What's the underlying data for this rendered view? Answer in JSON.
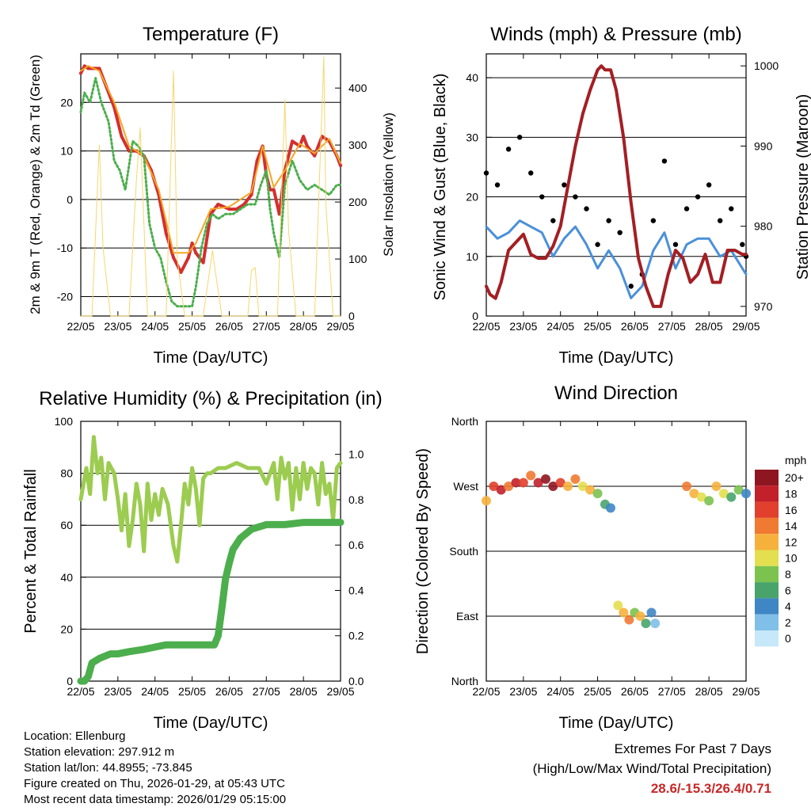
{
  "chart_data": [
    {
      "type": "line",
      "title": "Temperature (F)",
      "xlabel": "Time (Day/UTC)",
      "ylabel": "2m & 9m T (Red, Orange) & 2m Td (Green)",
      "y2label": "Solar Insolation (Yellow)",
      "xticks": [
        "22/05",
        "23/05",
        "24/05",
        "25/05",
        "26/05",
        "27/05",
        "28/05",
        "29/05"
      ],
      "yticks": [
        "-20",
        "-10",
        "0",
        "10",
        "20"
      ],
      "y2ticks": [
        "0",
        "100",
        "200",
        "300",
        "400"
      ],
      "ylim": [
        -24,
        30
      ],
      "y2lim": [
        0,
        460
      ],
      "xlim": [
        0,
        7
      ],
      "grid": "horizontal",
      "colors": {
        "t2m": "#d32f2f",
        "t9m": "#f5a623",
        "td": "#4cae4c",
        "sol": "#f5d76e"
      },
      "series": [
        {
          "name": "2m T",
          "x": [
            0,
            0.1,
            0.2,
            0.35,
            0.5,
            0.7,
            0.9,
            1.1,
            1.3,
            1.5,
            1.7,
            1.9,
            2.1,
            2.3,
            2.5,
            2.7,
            2.9,
            3.0,
            3.1,
            3.3,
            3.5,
            3.7,
            4.0,
            4.2,
            4.4,
            4.6,
            4.75,
            4.9,
            5.0,
            5.1,
            5.2,
            5.35,
            5.5,
            5.7,
            5.9,
            6.0,
            6.1,
            6.3,
            6.5,
            6.7,
            6.9,
            7.0
          ],
          "values": [
            26,
            27.5,
            27,
            27,
            27,
            23,
            19,
            13,
            10,
            10,
            9,
            6,
            1,
            -7,
            -12,
            -15,
            -12,
            -9,
            -11,
            -13,
            -3,
            -1,
            -2,
            -2,
            -1,
            1,
            8,
            11,
            5,
            2,
            2,
            -3,
            6,
            12,
            11,
            13,
            11,
            9,
            13,
            12,
            9,
            7
          ]
        },
        {
          "name": "9m T",
          "x": [
            0,
            0.2,
            0.5,
            0.9,
            1.3,
            1.7,
            2.1,
            2.5,
            2.9,
            3.1,
            3.5,
            4.0,
            4.6,
            4.9,
            5.2,
            5.5,
            5.9,
            6.3,
            6.7,
            7.0
          ],
          "values": [
            26.5,
            27.5,
            26.5,
            20,
            11,
            9,
            2,
            -11,
            -11,
            -9,
            -2,
            -1.5,
            1.5,
            11,
            2.5,
            6,
            11.5,
            9.5,
            12.5,
            7.5
          ]
        },
        {
          "name": "2m Td",
          "x": [
            0,
            0.1,
            0.25,
            0.4,
            0.55,
            0.75,
            0.9,
            1.05,
            1.2,
            1.4,
            1.55,
            1.7,
            1.85,
            2.0,
            2.15,
            2.3,
            2.45,
            2.6,
            2.8,
            3.0,
            3.1,
            3.25,
            3.4,
            3.55,
            3.7,
            3.9,
            4.1,
            4.3,
            4.5,
            4.7,
            4.85,
            5.0,
            5.1,
            5.2,
            5.35,
            5.5,
            5.7,
            5.9,
            6.1,
            6.3,
            6.5,
            6.7,
            6.9,
            7.0
          ],
          "values": [
            18,
            22,
            20,
            25,
            20,
            16,
            8,
            6,
            2,
            12,
            11,
            9,
            -5,
            -10,
            -12,
            -17,
            -21,
            -22,
            -22,
            -22,
            -18,
            -10,
            -5,
            -3,
            -4,
            -3,
            -3,
            -2,
            -1,
            -1,
            3,
            6,
            -2,
            -7,
            -12,
            3,
            8,
            4,
            2,
            3,
            2,
            1,
            3,
            3
          ]
        },
        {
          "name": "Solar Insolation",
          "axis": "y2",
          "x": [
            0,
            0.3,
            0.5,
            0.6,
            0.8,
            1.3,
            1.5,
            1.6,
            1.8,
            2.3,
            2.5,
            2.6,
            2.8,
            3.3,
            3.55,
            3.6,
            3.8,
            4.5,
            4.6,
            4.7,
            4.8,
            5.3,
            5.5,
            5.6,
            5.8,
            6.3,
            6.55,
            6.6,
            6.8,
            7.0
          ],
          "values": [
            0,
            0,
            300,
            120,
            0,
            0,
            240,
            330,
            0,
            0,
            430,
            100,
            0,
            0,
            115,
            90,
            0,
            0,
            80,
            85,
            0,
            0,
            380,
            150,
            0,
            0,
            455,
            200,
            0,
            0
          ]
        }
      ]
    },
    {
      "type": "scatter",
      "title": "Winds (mph) & Pressure (mb)",
      "xlabel": "Time (Day/UTC)",
      "ylabel": "Sonic Wind & Gust (Blue, Black)",
      "y2label": "Station Pressure (Maroon)",
      "xticks": [
        "22/05",
        "23/05",
        "24/05",
        "25/05",
        "26/05",
        "27/05",
        "28/05",
        "29/05"
      ],
      "yticks": [
        "0",
        "10",
        "20",
        "30",
        "40"
      ],
      "y2ticks": [
        "970",
        "980",
        "990",
        "1000"
      ],
      "ylim": [
        0,
        44
      ],
      "y2lim": [
        968.8,
        1001.5
      ],
      "xlim": [
        0,
        7
      ],
      "grid": "horizontal",
      "colors": {
        "wind": "#4a90d9",
        "gust": "#000000",
        "pressure": "#a31f24"
      },
      "series": [
        {
          "name": "Sonic Wind",
          "x": [
            0,
            0.3,
            0.6,
            0.9,
            1.2,
            1.5,
            1.8,
            2.1,
            2.4,
            2.7,
            3.0,
            3.3,
            3.6,
            3.9,
            4.2,
            4.5,
            4.8,
            5.1,
            5.4,
            5.7,
            6.0,
            6.3,
            6.6,
            6.9,
            7.0
          ],
          "values": [
            15,
            13,
            14,
            16,
            15,
            14,
            10,
            13,
            15,
            12,
            8,
            11,
            8,
            3,
            5,
            11,
            14,
            8,
            12,
            13,
            13,
            10,
            11,
            8,
            7
          ]
        },
        {
          "name": "Gust",
          "x": [
            0,
            0.3,
            0.6,
            0.9,
            1.2,
            1.5,
            1.8,
            2.1,
            2.4,
            2.7,
            3.0,
            3.3,
            3.6,
            3.9,
            4.2,
            4.5,
            4.8,
            5.1,
            5.4,
            5.7,
            6.0,
            6.3,
            6.6,
            6.9,
            7.0
          ],
          "values": [
            24,
            22,
            28,
            30,
            24,
            20,
            16,
            22,
            20,
            18,
            12,
            16,
            14,
            5,
            7,
            16,
            26,
            12,
            18,
            20,
            22,
            16,
            18,
            12,
            10
          ]
        },
        {
          "name": "Station Pressure",
          "axis": "y2",
          "x": [
            0,
            0.1,
            0.25,
            0.4,
            0.6,
            0.8,
            1.0,
            1.2,
            1.4,
            1.6,
            1.8,
            2.0,
            2.2,
            2.4,
            2.6,
            2.8,
            3.0,
            3.1,
            3.2,
            3.35,
            3.5,
            3.7,
            3.9,
            4.1,
            4.3,
            4.5,
            4.7,
            4.9,
            5.1,
            5.3,
            5.5,
            5.7,
            5.9,
            6.1,
            6.3,
            6.5,
            6.7,
            6.9,
            7.0
          ],
          "values": [
            972.5,
            971.5,
            971,
            973,
            977,
            978,
            979,
            976.5,
            976,
            976,
            977.5,
            980,
            985,
            990,
            994,
            997,
            999.5,
            1000,
            999.5,
            999.5,
            997,
            991,
            983,
            976,
            972.5,
            970,
            970,
            974,
            977,
            976,
            973,
            974,
            976.5,
            973,
            973,
            977,
            977,
            976.5,
            976.5
          ]
        }
      ]
    },
    {
      "type": "line",
      "title": "Relative Humidity (%) & Precipitation (in)",
      "xlabel": "Time (Day/UTC)",
      "ylabel": "Percent & Total Rainfall",
      "xticks": [
        "22/05",
        "23/05",
        "24/05",
        "25/05",
        "26/05",
        "27/05",
        "28/05",
        "29/05"
      ],
      "yticks": [
        "0",
        "20",
        "40",
        "60",
        "80",
        "100"
      ],
      "y2ticks": [
        "0.0",
        "0.2",
        "0.4",
        "0.6",
        "0.8",
        "1.0"
      ],
      "ylim": [
        0,
        100
      ],
      "y2lim": [
        0,
        1.1455
      ],
      "xlim": [
        0,
        7
      ],
      "grid": "horizontal",
      "colors": {
        "rh": "#9ccc50",
        "precip": "#4cae4c"
      },
      "series": [
        {
          "name": "Relative Humidity",
          "x": [
            0,
            0.15,
            0.25,
            0.35,
            0.45,
            0.55,
            0.65,
            0.75,
            0.9,
            1.0,
            1.1,
            1.2,
            1.3,
            1.4,
            1.5,
            1.6,
            1.7,
            1.8,
            1.9,
            2.0,
            2.1,
            2.2,
            2.35,
            2.5,
            2.6,
            2.7,
            2.8,
            2.9,
            3.0,
            3.1,
            3.2,
            3.3,
            3.4,
            3.5,
            3.7,
            3.9,
            4.2,
            4.5,
            4.8,
            5.0,
            5.1,
            5.2,
            5.3,
            5.4,
            5.5,
            5.6,
            5.7,
            5.8,
            5.9,
            6.0,
            6.1,
            6.2,
            6.3,
            6.4,
            6.5,
            6.6,
            6.7,
            6.8,
            6.9,
            7.0
          ],
          "values": [
            70,
            82,
            72,
            94,
            80,
            86,
            70,
            84,
            80,
            70,
            58,
            72,
            52,
            62,
            76,
            68,
            50,
            76,
            62,
            72,
            64,
            74,
            68,
            52,
            46,
            60,
            76,
            68,
            82,
            74,
            60,
            78,
            80,
            80,
            82,
            82,
            84,
            82,
            82,
            76,
            80,
            84,
            70,
            86,
            78,
            84,
            66,
            82,
            70,
            84,
            74,
            82,
            80,
            68,
            84,
            72,
            76,
            62,
            82,
            84
          ]
        },
        {
          "name": "Total Precipitation",
          "axis": "y2",
          "x": [
            0,
            0.1,
            0.2,
            0.3,
            0.5,
            0.8,
            1.0,
            1.3,
            1.7,
            2.0,
            2.3,
            2.7,
            3.0,
            3.3,
            3.6,
            3.7,
            3.8,
            3.9,
            4.0,
            4.1,
            4.3,
            4.6,
            5.0,
            5.5,
            6.0,
            6.5,
            7.0
          ],
          "values": [
            0,
            0,
            0.02,
            0.08,
            0.1,
            0.12,
            0.12,
            0.13,
            0.14,
            0.15,
            0.16,
            0.16,
            0.16,
            0.16,
            0.16,
            0.2,
            0.32,
            0.45,
            0.52,
            0.58,
            0.63,
            0.67,
            0.69,
            0.69,
            0.7,
            0.7,
            0.7
          ]
        }
      ]
    },
    {
      "type": "scatter",
      "title": "Wind Direction",
      "xlabel": "Time (Day/UTC)",
      "ylabel": "Direction (Colored By Speed)",
      "xticks": [
        "22/05",
        "23/05",
        "24/05",
        "25/05",
        "26/05",
        "27/05",
        "28/05",
        "29/05"
      ],
      "yticks": [
        "North",
        "East",
        "South",
        "West",
        "North"
      ],
      "ylim": [
        0,
        360
      ],
      "xlim": [
        0,
        7
      ],
      "grid": "horizontal",
      "colorbar": {
        "unit": "mph",
        "labels": [
          "0",
          "2",
          "4",
          "6",
          "8",
          "10",
          "12",
          "14",
          "16",
          "18",
          "20+"
        ],
        "colors": [
          "#c6e8f8",
          "#7fbfe8",
          "#3f86c4",
          "#49a46b",
          "#7cc24f",
          "#e3df4f",
          "#f6b13d",
          "#f07a32",
          "#e1402c",
          "#c2202a",
          "#8e1620"
        ]
      },
      "series": [
        {
          "name": "Direction",
          "x": [
            0,
            0.2,
            0.4,
            0.6,
            0.8,
            1.0,
            1.2,
            1.4,
            1.6,
            1.8,
            2.0,
            2.2,
            2.4,
            2.6,
            2.8,
            3.0,
            3.2,
            3.35,
            5.4,
            5.6,
            5.8,
            6.0,
            6.2,
            6.4,
            6.6,
            6.8,
            7.0
          ],
          "speed_mph": [
            12,
            16,
            18,
            14,
            18,
            16,
            14,
            18,
            20,
            20,
            16,
            12,
            14,
            10,
            12,
            8,
            6,
            4,
            14,
            12,
            10,
            8,
            12,
            10,
            6,
            8,
            4
          ],
          "values": [
            250,
            270,
            265,
            270,
            275,
            275,
            285,
            275,
            280,
            270,
            275,
            270,
            280,
            270,
            265,
            260,
            245,
            240,
            270,
            260,
            255,
            250,
            270,
            260,
            255,
            265,
            260
          ]
        },
        {
          "name": "Direction (easterly)",
          "x": [
            3.55,
            3.7,
            3.85,
            4.0,
            4.15,
            4.3,
            4.45,
            4.55
          ],
          "speed_mph": [
            10,
            12,
            14,
            8,
            12,
            6,
            4,
            2
          ],
          "values": [
            105,
            95,
            85,
            95,
            90,
            80,
            95,
            80
          ]
        }
      ]
    }
  ],
  "station_info": [
    "Location: Ellenburg",
    "Station elevation: 297.912 m",
    "Station lat/lon: 44.8955; -73.845",
    "Figure created on Thu, 2026-01-29, at 05:43 UTC",
    "Most recent data timestamp: 2026/01/29 05:15:00"
  ],
  "extremes": {
    "title": "Extremes For Past 7 Days",
    "subtitle": "(High/Low/Max Wind/Total Precipitation)",
    "values": "28.6/-15.3/26.4/0.71",
    "value_color": "#c62828"
  }
}
